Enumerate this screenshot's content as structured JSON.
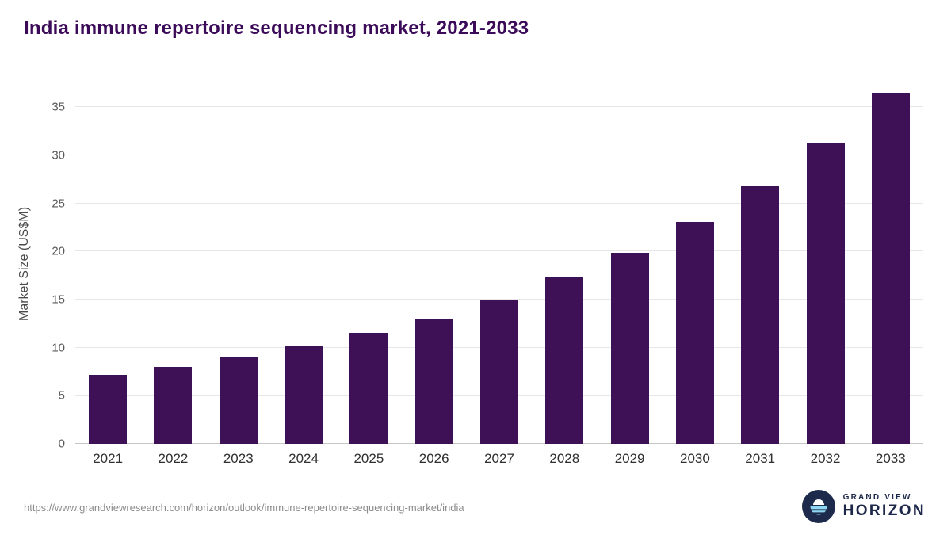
{
  "chart_data": {
    "type": "bar",
    "title": "India immune repertoire sequencing market, 2021-2033",
    "xlabel": "",
    "ylabel": "Market Size (US$M)",
    "categories": [
      "2021",
      "2022",
      "2023",
      "2024",
      "2025",
      "2026",
      "2027",
      "2028",
      "2029",
      "2030",
      "2031",
      "2032",
      "2033"
    ],
    "values": [
      7.2,
      8.0,
      9.0,
      10.2,
      11.5,
      13.0,
      15.0,
      17.3,
      19.9,
      23.1,
      26.8,
      31.3,
      36.5
    ],
    "ylim": [
      0,
      35
    ],
    "yticks": [
      0,
      5,
      10,
      15,
      20,
      25,
      30,
      35
    ],
    "grid": true,
    "legend": "none",
    "bar_color": "#3e1055"
  },
  "colors": {
    "title": "#3b0a59",
    "bar": "#3e1055",
    "gridline": "#e7e7e7",
    "logo_navy": "#1d2a4c",
    "logo_light_blue": "#8fd6f2"
  },
  "footer": {
    "source_url": "https://www.grandviewresearch.com/horizon/outlook/immune-repertoire-sequencing-market/india",
    "logo_line1": "GRAND VIEW",
    "logo_line2": "HORIZON"
  }
}
